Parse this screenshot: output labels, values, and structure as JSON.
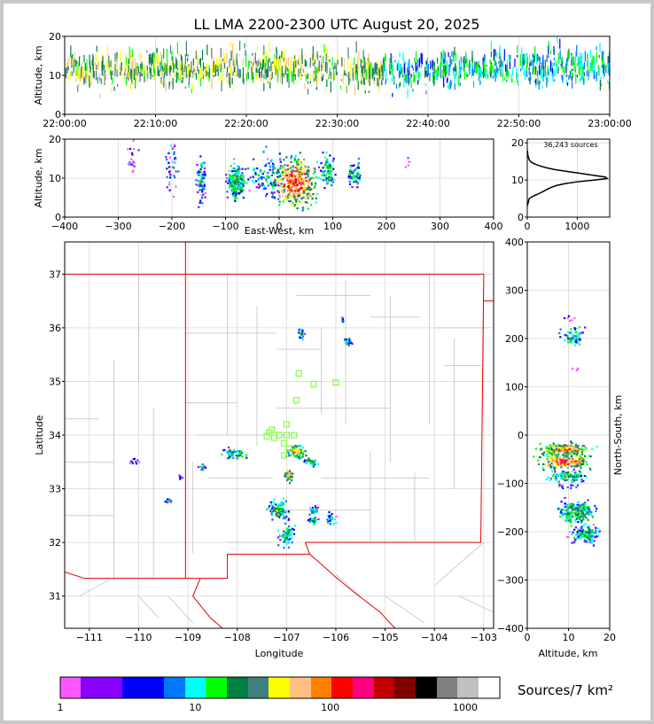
{
  "title": "LL LMA 2200-2300 UTC August 20, 2025",
  "colors": {
    "palette": [
      "#ff55ff",
      "#8800ff",
      "#0000ff",
      "#0077ff",
      "#00ffff",
      "#00ff00",
      "#008040",
      "#408080",
      "#ffff00",
      "#ffc080",
      "#ff8000",
      "#ff0000",
      "#ff0080",
      "#c00000",
      "#800000",
      "#000000",
      "#808080",
      "#c0c0c0",
      "#ffffff"
    ],
    "state_border": "#e00000",
    "county_border": "#b0b0b0",
    "profile_line": "#000000",
    "marker": "#80ff40"
  },
  "chart_data": [
    {
      "id": "time-height",
      "type": "scatter",
      "ylabel": "Altitude, km",
      "xlim": [
        "22:00:00",
        "23:00:00"
      ],
      "ylim": [
        0,
        20
      ],
      "xticks": [
        "22:00:00",
        "22:10:00",
        "22:20:00",
        "22:30:00",
        "22:40:00",
        "22:50:00",
        "23:00:00"
      ],
      "yticks": [
        "0",
        "10",
        "20"
      ],
      "density_profile": [
        {
          "t": 0,
          "lo": 5,
          "hi": 16
        },
        {
          "t": 5,
          "lo": 3,
          "hi": 17
        },
        {
          "t": 10,
          "lo": 4,
          "hi": 18
        },
        {
          "t": 15,
          "lo": 4,
          "hi": 18
        },
        {
          "t": 20,
          "lo": 5,
          "hi": 18
        },
        {
          "t": 25,
          "lo": 4,
          "hi": 18
        },
        {
          "t": 30,
          "lo": 3,
          "hi": 17
        },
        {
          "t": 35,
          "lo": 4,
          "hi": 16
        },
        {
          "t": 40,
          "lo": 4,
          "hi": 16
        },
        {
          "t": 45,
          "lo": 5,
          "hi": 17
        },
        {
          "t": 50,
          "lo": 4,
          "hi": 19
        },
        {
          "t": 55,
          "lo": 4,
          "hi": 19
        },
        {
          "t": 60,
          "lo": 5,
          "hi": 18
        }
      ]
    },
    {
      "id": "ew-height",
      "type": "scatter",
      "xlabel": "East-West, km",
      "ylabel": "Altitude, km",
      "xlim": [
        -400,
        400
      ],
      "ylim": [
        0,
        20
      ],
      "xticks": [
        "−400",
        "−300",
        "−200",
        "−100",
        "0",
        "100",
        "200",
        "300",
        "400"
      ],
      "yticks": [
        "0",
        "10",
        "20"
      ],
      "clusters": [
        {
          "x": -275,
          "y": 15,
          "dx": 8,
          "dy": 3,
          "n": 20,
          "lvl": 1
        },
        {
          "x": -200,
          "y": 13,
          "dx": 10,
          "dy": 4,
          "n": 40,
          "lvl": 2
        },
        {
          "x": -145,
          "y": 10,
          "dx": 6,
          "dy": 4,
          "n": 70,
          "lvl": 3
        },
        {
          "x": -80,
          "y": 9,
          "dx": 10,
          "dy": 3,
          "n": 220,
          "lvl": 5
        },
        {
          "x": -20,
          "y": 10,
          "dx": 30,
          "dy": 4,
          "n": 120,
          "lvl": 3
        },
        {
          "x": 30,
          "y": 9,
          "dx": 25,
          "dy": 4,
          "n": 400,
          "lvl": 9
        },
        {
          "x": 90,
          "y": 12,
          "dx": 10,
          "dy": 3,
          "n": 80,
          "lvl": 4
        },
        {
          "x": 140,
          "y": 11,
          "dx": 8,
          "dy": 2,
          "n": 60,
          "lvl": 4
        },
        {
          "x": 240,
          "y": 14,
          "dx": 3,
          "dy": 1,
          "n": 5,
          "lvl": 1
        }
      ]
    },
    {
      "id": "altitude-histogram",
      "type": "line",
      "annotation": "36,243 sources",
      "xlim": [
        0,
        1650
      ],
      "ylim": [
        0,
        21
      ],
      "xticks": [
        "0",
        "1000"
      ],
      "yticks": [
        "0",
        "10",
        "20"
      ],
      "series": [
        {
          "points": [
            [
              0,
              3
            ],
            [
              20,
              4
            ],
            [
              40,
              5
            ],
            [
              100,
              5.5
            ],
            [
              180,
              6
            ],
            [
              260,
              6.5
            ],
            [
              330,
              7
            ],
            [
              400,
              7.5
            ],
            [
              480,
              8
            ],
            [
              580,
              8.5
            ],
            [
              750,
              9
            ],
            [
              1000,
              9.5
            ],
            [
              1350,
              10
            ],
            [
              1600,
              10.4
            ],
            [
              1560,
              10.8
            ],
            [
              1300,
              11.3
            ],
            [
              1050,
              11.8
            ],
            [
              800,
              12.3
            ],
            [
              550,
              12.8
            ],
            [
              380,
              13.3
            ],
            [
              250,
              13.8
            ],
            [
              150,
              14.3
            ],
            [
              80,
              14.8
            ],
            [
              40,
              15.4
            ],
            [
              20,
              16.2
            ],
            [
              8,
              17
            ],
            [
              3,
              18
            ]
          ]
        }
      ]
    },
    {
      "id": "plan-view",
      "type": "scatter",
      "xlabel": "Longitude",
      "ylabel": "Latitude",
      "xlim": [
        -111.5,
        -102.8
      ],
      "ylim": [
        30.4,
        37.6
      ],
      "xticks": [
        "−111",
        "−110",
        "−109",
        "−108",
        "−107",
        "−106",
        "−105",
        "−104",
        "−103"
      ],
      "yticks": [
        "31",
        "32",
        "33",
        "34",
        "35",
        "36",
        "37"
      ],
      "clusters": [
        {
          "x": -106.7,
          "y": 35.9,
          "dx": 0.05,
          "dy": 0.08,
          "n": 20,
          "lvl": 4
        },
        {
          "x": -105.75,
          "y": 35.75,
          "dx": 0.06,
          "dy": 0.06,
          "n": 25,
          "lvl": 3
        },
        {
          "x": -105.85,
          "y": 36.15,
          "dx": 0.04,
          "dy": 0.04,
          "n": 6,
          "lvl": 1
        },
        {
          "x": -108.05,
          "y": 33.65,
          "dx": 0.15,
          "dy": 0.06,
          "n": 60,
          "lvl": 5
        },
        {
          "x": -106.8,
          "y": 33.7,
          "dx": 0.12,
          "dy": 0.08,
          "n": 70,
          "lvl": 7
        },
        {
          "x": -106.5,
          "y": 33.5,
          "dx": 0.1,
          "dy": 0.05,
          "n": 40,
          "lvl": 5
        },
        {
          "x": -106.95,
          "y": 33.25,
          "dx": 0.06,
          "dy": 0.08,
          "n": 35,
          "lvl": 8
        },
        {
          "x": -107.15,
          "y": 32.6,
          "dx": 0.12,
          "dy": 0.12,
          "n": 90,
          "lvl": 5
        },
        {
          "x": -107.0,
          "y": 32.15,
          "dx": 0.1,
          "dy": 0.15,
          "n": 70,
          "lvl": 4
        },
        {
          "x": -106.45,
          "y": 32.6,
          "dx": 0.06,
          "dy": 0.05,
          "n": 25,
          "lvl": 4
        },
        {
          "x": -106.45,
          "y": 32.4,
          "dx": 0.08,
          "dy": 0.05,
          "n": 25,
          "lvl": 4
        },
        {
          "x": -106.1,
          "y": 32.45,
          "dx": 0.06,
          "dy": 0.08,
          "n": 30,
          "lvl": 4
        },
        {
          "x": -109.4,
          "y": 32.78,
          "dx": 0.06,
          "dy": 0.03,
          "n": 12,
          "lvl": 3
        },
        {
          "x": -109.15,
          "y": 33.2,
          "dx": 0.04,
          "dy": 0.03,
          "n": 8,
          "lvl": 2
        },
        {
          "x": -108.7,
          "y": 33.4,
          "dx": 0.06,
          "dy": 0.04,
          "n": 12,
          "lvl": 3
        },
        {
          "x": -110.1,
          "y": 33.5,
          "dx": 0.08,
          "dy": 0.04,
          "n": 12,
          "lvl": 2
        }
      ],
      "markers": [
        {
          "x": -106.75,
          "y": 35.15
        },
        {
          "x": -106.45,
          "y": 34.95
        },
        {
          "x": -106.0,
          "y": 34.98
        },
        {
          "x": -106.8,
          "y": 34.65
        },
        {
          "x": -107.0,
          "y": 34.2
        },
        {
          "x": -107.3,
          "y": 34.1
        },
        {
          "x": -107.15,
          "y": 34.0
        },
        {
          "x": -107.0,
          "y": 34.0
        },
        {
          "x": -106.85,
          "y": 34.0
        },
        {
          "x": -107.4,
          "y": 33.98
        },
        {
          "x": -107.25,
          "y": 33.95
        },
        {
          "x": -107.05,
          "y": 33.85
        },
        {
          "x": -106.95,
          "y": 33.75
        },
        {
          "x": -107.05,
          "y": 33.62
        },
        {
          "x": -107.35,
          "y": 34.05
        }
      ]
    },
    {
      "id": "height-ns",
      "type": "scatter",
      "xlabel": "Altitude, km",
      "ylabel": "North-South, km",
      "xlim": [
        0,
        20
      ],
      "ylim": [
        -400,
        400
      ],
      "xticks": [
        "0",
        "10",
        "20"
      ],
      "yticks": [
        "−400",
        "−300",
        "−200",
        "−100",
        "0",
        "100",
        "200",
        "300",
        "400"
      ],
      "clusters": [
        {
          "x": 11,
          "y": 205,
          "dx": 2,
          "dy": 15,
          "n": 60,
          "lvl": 4
        },
        {
          "x": 10,
          "y": 240,
          "dx": 1,
          "dy": 5,
          "n": 6,
          "lvl": 1
        },
        {
          "x": 9,
          "y": -30,
          "dx": 4,
          "dy": 8,
          "n": 220,
          "lvl": 8
        },
        {
          "x": 9,
          "y": -55,
          "dx": 4,
          "dy": 10,
          "n": 200,
          "lvl": 9
        },
        {
          "x": 10,
          "y": -85,
          "dx": 3,
          "dy": 8,
          "n": 110,
          "lvl": 5
        },
        {
          "x": 10,
          "y": -105,
          "dx": 2,
          "dy": 4,
          "n": 15,
          "lvl": 2
        },
        {
          "x": 12,
          "y": -160,
          "dx": 3,
          "dy": 15,
          "n": 220,
          "lvl": 5
        },
        {
          "x": 14,
          "y": -205,
          "dx": 2.5,
          "dy": 12,
          "n": 130,
          "lvl": 4
        },
        {
          "x": 12,
          "y": 137,
          "dx": 1,
          "dy": 3,
          "n": 4,
          "lvl": 1
        }
      ]
    }
  ],
  "colorbar": {
    "label": "Sources/7 km²",
    "ticks": [
      {
        "value": 1,
        "text": "1"
      },
      {
        "value": 10,
        "text": "10"
      },
      {
        "value": 100,
        "text": "100"
      },
      {
        "value": 1000,
        "text": "1000"
      }
    ]
  }
}
